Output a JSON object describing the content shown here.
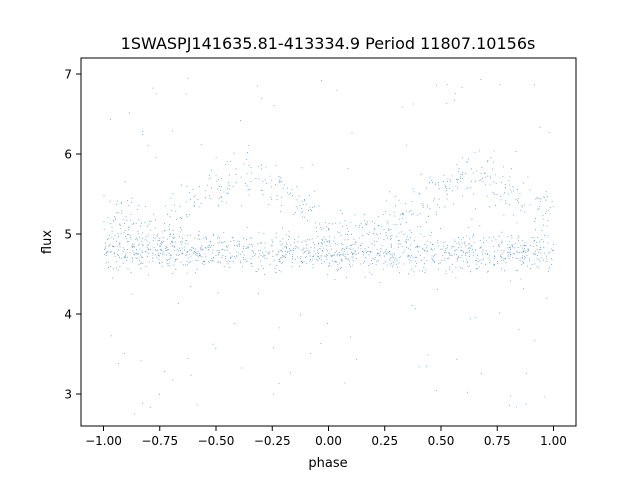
{
  "chart_data": {
    "type": "scatter",
    "title": "1SWASPJ141635.81-413334.9 Period 11807.10156s",
    "xlabel": "phase",
    "ylabel": "flux",
    "xlim": [
      -1.1,
      1.1
    ],
    "ylim": [
      2.6,
      7.2
    ],
    "xticks": [
      -1.0,
      -0.75,
      -0.5,
      -0.25,
      0.0,
      0.25,
      0.5,
      0.75,
      1.0
    ],
    "xtick_labels": [
      "−1.00",
      "−0.75",
      "−0.50",
      "−0.25",
      "0.00",
      "0.25",
      "0.50",
      "0.75",
      "1.00"
    ],
    "yticks": [
      3,
      4,
      5,
      6,
      7
    ],
    "ytick_labels": [
      "3",
      "4",
      "5",
      "6",
      "7"
    ],
    "grid": false,
    "marker_color": "#1f77b4",
    "series": [
      {
        "phase_range": [
          -1.0,
          1.0
        ],
        "components": [
          {
            "description_free": true,
            "center_flux": 4.78,
            "spread": 0.2,
            "phase_span": [
              -1.0,
              1.0
            ],
            "weight": 0.62
          },
          {
            "center_flux_profile": [
              {
                "phase": -1.0,
                "flux": 5.2
              },
              {
                "phase": -0.75,
                "flux": 5.05
              },
              {
                "phase": -0.55,
                "flux": 5.5
              },
              {
                "phase": -0.35,
                "flux": 5.8
              },
              {
                "phase": -0.2,
                "flux": 5.55
              },
              {
                "phase": 0.0,
                "flux": 5.05
              },
              {
                "phase": 0.25,
                "flux": 5.05
              },
              {
                "phase": 0.45,
                "flux": 5.5
              },
              {
                "phase": 0.65,
                "flux": 5.8
              },
              {
                "phase": 0.8,
                "flux": 5.55
              },
              {
                "phase": 1.0,
                "flux": 5.2
              }
            ],
            "spread": 0.25,
            "weight": 0.3
          },
          {
            "flux_range": [
              2.75,
              7.0
            ],
            "phase_span": [
              -1.0,
              1.0
            ],
            "weight": 0.08
          }
        ]
      }
    ]
  }
}
